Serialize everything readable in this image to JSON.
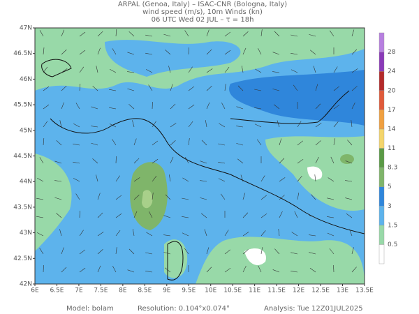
{
  "header": {
    "line1": "ARPAL (Genoa, Italy)  –  ISAC-CNR (Bologna, Italy)",
    "line2": "wind speed (m/s), 10m Winds (kn)",
    "line3": "06 UTC Wed 02 JUL  –  τ = 18h"
  },
  "map": {
    "lon_labels": [
      "6E",
      "6.5E",
      "7E",
      "7.5E",
      "8E",
      "8.5E",
      "9E",
      "9.5E",
      "10E",
      "10.5E",
      "11E",
      "11.5E",
      "12E",
      "12.5E",
      "13E",
      "13.5E"
    ],
    "lat_labels": [
      "42N",
      "42.5N",
      "43N",
      "43.5N",
      "44N",
      "44.5N",
      "45N",
      "45.5N",
      "46N",
      "46.5N",
      "47N"
    ]
  },
  "colorbar": {
    "labels": [
      "0.5",
      "1.5",
      "3",
      "5",
      "8.3",
      "11",
      "14",
      "17",
      "20",
      "24",
      "28"
    ],
    "colors": [
      "#ffffff",
      "#98d9a8",
      "#5db3ec",
      "#2f86db",
      "#7fb56a",
      "#5a9a45",
      "#f4d56b",
      "#f0a040",
      "#e05a3a",
      "#b42a2a",
      "#8a3ab8",
      "#b77fe0"
    ]
  },
  "footer": {
    "model": "Model:  bolam",
    "resolution": "Resolution: 0.104°x0.074°",
    "analysis": "Analysis: Tue 12Z01JUL2025"
  }
}
